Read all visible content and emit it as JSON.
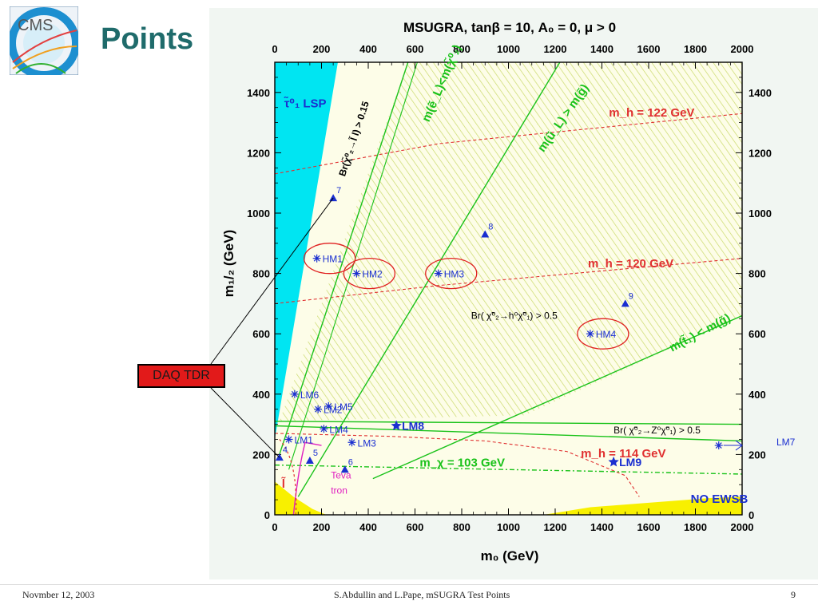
{
  "slide": {
    "title": "Points",
    "footer_date": "Novmber 12, 2003",
    "footer_author": "S.Abdullin and L.Pape,   mSUGRA Test Points",
    "page_number": "9",
    "callout": "DAQ TDR"
  },
  "colors": {
    "title": "#1f6b6b",
    "lsp_region": "#00e5f2",
    "hatch": "#c9d96a",
    "allowed_bg": "#fdfde8",
    "no_ewsb": "#f8f000",
    "mh_lines": "#e03030",
    "green_lines": "#19c219",
    "points": "#1a2fd0",
    "circles": "#e02020",
    "teva": "#e020c0"
  },
  "chart_data": {
    "type": "scatter",
    "title": "MSUGRA, tanβ = 10, A₀ = 0, μ > 0",
    "xlabel": "m₀ (GeV)",
    "ylabel": "m₁/₂ (GeV)",
    "xlim": [
      0,
      2000
    ],
    "ylim": [
      0,
      1500
    ],
    "xticks": [
      0,
      200,
      400,
      600,
      800,
      1000,
      1200,
      1400,
      1600,
      1800,
      2000
    ],
    "yticks": [
      0,
      200,
      400,
      600,
      800,
      1000,
      1200,
      1400
    ],
    "points": [
      {
        "label": "LM1",
        "x": 60,
        "y": 250,
        "marker": "star"
      },
      {
        "label": "LM2",
        "x": 185,
        "y": 350,
        "marker": "star"
      },
      {
        "label": "LM3",
        "x": 330,
        "y": 240,
        "marker": "star"
      },
      {
        "label": "LM4",
        "x": 210,
        "y": 285,
        "marker": "star"
      },
      {
        "label": "LM5",
        "x": 230,
        "y": 360,
        "marker": "star"
      },
      {
        "label": "LM6",
        "x": 85,
        "y": 400,
        "marker": "star"
      },
      {
        "label": "LM7",
        "x": 1900,
        "y": 230,
        "marker": "star"
      },
      {
        "label": "LM8",
        "x": 520,
        "y": 295,
        "marker": "star5"
      },
      {
        "label": "LM9",
        "x": 1450,
        "y": 175,
        "marker": "star5"
      },
      {
        "label": "HM1",
        "x": 180,
        "y": 850,
        "marker": "star",
        "circled": true
      },
      {
        "label": "HM2",
        "x": 350,
        "y": 800,
        "marker": "star",
        "circled": true
      },
      {
        "label": "HM3",
        "x": 700,
        "y": 800,
        "marker": "star",
        "circled": true
      },
      {
        "label": "HM4",
        "x": 1350,
        "y": 600,
        "marker": "star",
        "circled": true
      },
      {
        "label": "4",
        "x": 20,
        "y": 190,
        "marker": "triangle"
      },
      {
        "label": "5",
        "x": 150,
        "y": 180,
        "marker": "triangle"
      },
      {
        "label": "6",
        "x": 300,
        "y": 150,
        "marker": "triangle"
      },
      {
        "label": "7",
        "x": 250,
        "y": 1050,
        "marker": "triangle"
      },
      {
        "label": "8",
        "x": 900,
        "y": 930,
        "marker": "triangle"
      },
      {
        "label": "9",
        "x": 1500,
        "y": 700,
        "marker": "triangle"
      }
    ],
    "lsp_boundary": [
      [
        0,
        250
      ],
      [
        270,
        1500
      ]
    ],
    "mh_contours": [
      {
        "label": "m_h = 122 GeV",
        "points": [
          [
            0,
            1130
          ],
          [
            700,
            1230
          ],
          [
            2000,
            1330
          ]
        ]
      },
      {
        "label": "m_h = 120 GeV",
        "points": [
          [
            0,
            700
          ],
          [
            700,
            760
          ],
          [
            2000,
            850
          ]
        ]
      },
      {
        "label": "m_h = 114 GeV",
        "points": [
          [
            0,
            270
          ],
          [
            500,
            260
          ],
          [
            900,
            245
          ],
          [
            1250,
            210
          ],
          [
            1500,
            130
          ],
          [
            1560,
            60
          ]
        ]
      }
    ],
    "green_lines": [
      {
        "label": "m(ẽ_L) < m(χ̃⁰₂)",
        "points": [
          [
            20,
            200
          ],
          [
            570,
            1500
          ]
        ]
      },
      {
        "label": "m(ũ_L) > m(g̃)",
        "points": [
          [
            100,
            60
          ],
          [
            1220,
            1500
          ]
        ]
      },
      {
        "label": "m(t̃₁) < m(g̃)",
        "points": [
          [
            420,
            120
          ],
          [
            2000,
            660
          ]
        ]
      },
      {
        "label": "Br(χ̃⁰₂→Z⁰χ̃⁰₁) > 0.5",
        "points": [
          [
            0,
            310
          ],
          [
            2000,
            300
          ]
        ]
      },
      {
        "label": "Br(χ̃⁰₂→Z⁰χ̃⁰₁) > 0.5",
        "points": [
          [
            0,
            295
          ],
          [
            2000,
            245
          ]
        ]
      },
      {
        "label": "m_χ = 103 GeV",
        "points": [
          [
            0,
            165
          ],
          [
            2000,
            135
          ]
        ]
      }
    ],
    "annotations": [
      {
        "text": "τ̃⁰₁ LSP",
        "x": 40,
        "y": 1350
      },
      {
        "text": "Br(χ̃⁰₂→l̃ l) > 0.15",
        "x": 300,
        "y": 1120
      },
      {
        "text": "m(ẽ_L)<m(χ̃⁰₂)",
        "x": 660,
        "y": 1300
      },
      {
        "text": "m(ũ_L) > m(g̃)",
        "x": 1150,
        "y": 1200
      },
      {
        "text": "m_h = 122 GeV",
        "x": 1430,
        "y": 1320
      },
      {
        "text": "m_h = 120 GeV",
        "x": 1340,
        "y": 820
      },
      {
        "text": "Br( χ̃⁰₂→h⁰χ̃⁰₁) > 0.5",
        "x": 840,
        "y": 650
      },
      {
        "text": "m(t̃₁) < m(g̃)",
        "x": 1700,
        "y": 540
      },
      {
        "text": "Br( χ̃⁰₂→Z⁰χ̃⁰₁) > 0.5",
        "x": 1450,
        "y": 270
      },
      {
        "text": "m_h = 114 GeV",
        "x": 1310,
        "y": 190
      },
      {
        "text": "m_χ = 103 GeV",
        "x": 620,
        "y": 160
      },
      {
        "text": "NO EWSB",
        "x": 1780,
        "y": 40
      },
      {
        "text": "Teva",
        "x": 240,
        "y": 120
      },
      {
        "text": "tron",
        "x": 240,
        "y": 70
      },
      {
        "text": "l̃",
        "x": 30,
        "y": 90
      }
    ]
  }
}
